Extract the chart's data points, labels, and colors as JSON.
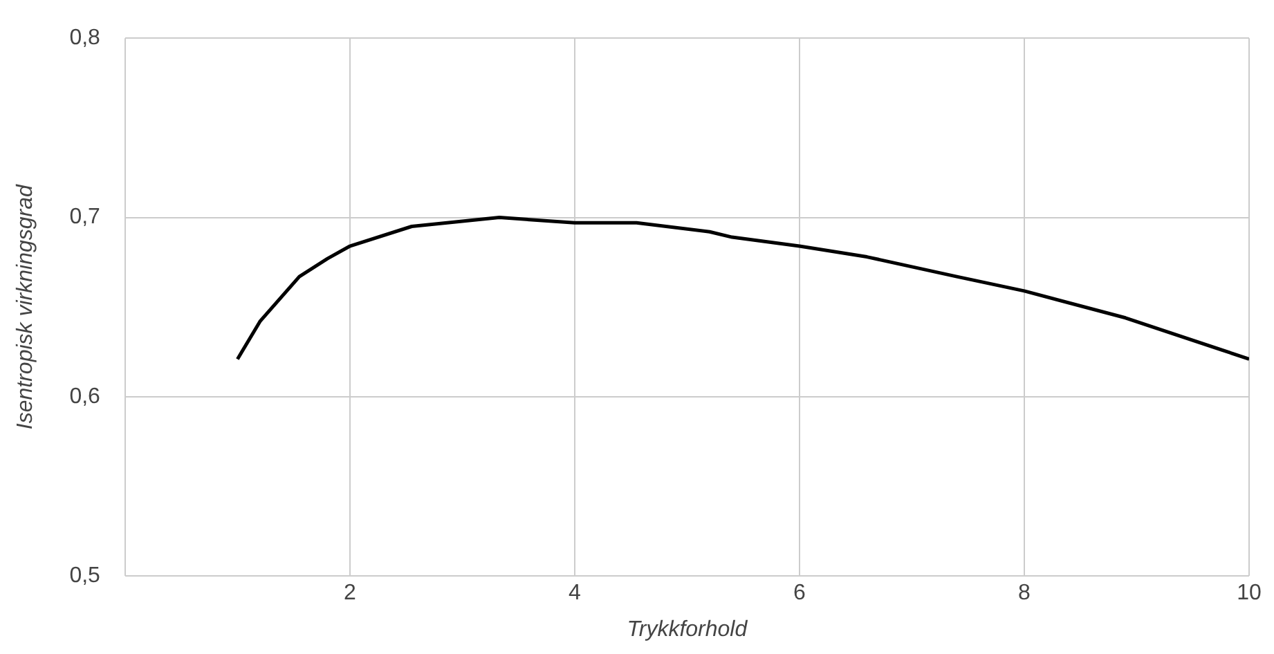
{
  "chart_data": {
    "type": "line",
    "xlabel": "Trykkforhold",
    "ylabel": "Isentropisk virkningsgrad",
    "series": [
      {
        "color": "#000000",
        "x": [
          1.0,
          1.2,
          1.55,
          1.8,
          2.0,
          2.55,
          3.33,
          4.0,
          4.55,
          5.2,
          5.4,
          6.0,
          6.6,
          7.4,
          8.0,
          8.9,
          10.0
        ],
        "values": [
          0.621,
          0.642,
          0.667,
          0.677,
          0.684,
          0.695,
          0.7,
          0.697,
          0.697,
          0.692,
          0.689,
          0.684,
          0.678,
          0.667,
          0.659,
          0.644,
          0.621
        ]
      }
    ],
    "xlim": [
      0,
      10
    ],
    "xticks": [
      {
        "value": 0,
        "label": null
      },
      2,
      4,
      6,
      8,
      10
    ],
    "ylim": [
      0.5,
      0.8
    ],
    "yticks": [
      {
        "value": 0.5,
        "label": "0,5"
      },
      {
        "value": 0.6,
        "label": "0,6"
      },
      {
        "value": 0.7,
        "label": "0,7"
      },
      {
        "value": 0.8,
        "label": "0,8"
      }
    ],
    "grid": true,
    "legend": false,
    "marker": "none",
    "line_style": "solid"
  }
}
